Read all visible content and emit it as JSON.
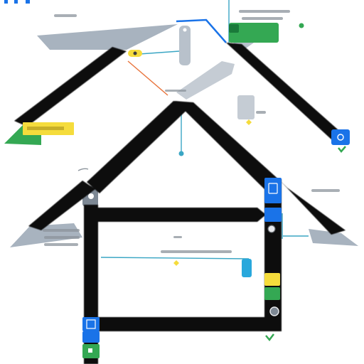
{
  "colors": {
    "beam": "#0a0a0a",
    "panel_gray": "#a6b1bd",
    "panel_light": "#c5ccd4",
    "accent_blue": "#1a73e8",
    "accent_green": "#34a853",
    "accent_yellow": "#f5dc3c",
    "accent_orange": "#e8743c",
    "connector_teal": "#3aa6c4",
    "text_gray": "#8c949c"
  },
  "icons": [
    "camera-icon",
    "sensor-icon",
    "gear-icon",
    "check-icon",
    "grid-icon"
  ]
}
